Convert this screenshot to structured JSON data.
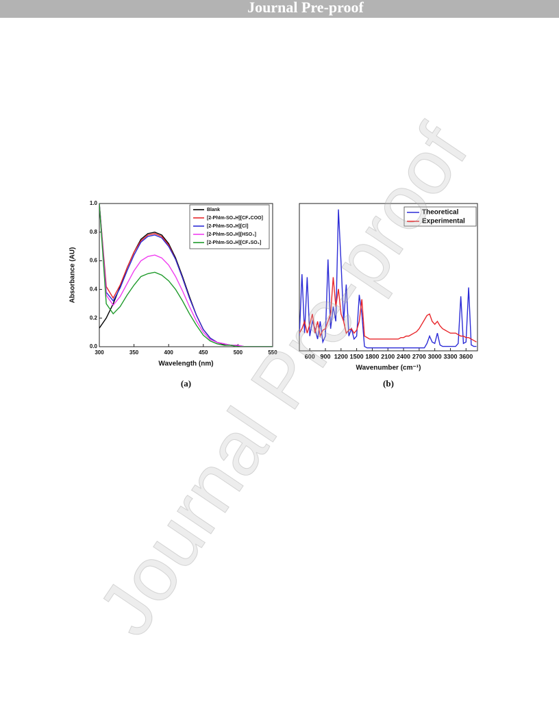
{
  "header": "Journal Pre-proof",
  "watermark": "Journal Pre-proof",
  "chart_data": [
    {
      "type": "line",
      "caption": "(a)",
      "x_label": "Wavelength (nm)",
      "y_label": "Absorbance (AU)",
      "xlim": [
        300,
        550
      ],
      "xticks": [
        300,
        350,
        400,
        450,
        500,
        550
      ],
      "ylim": [
        0,
        1
      ],
      "yticks": [
        {
          "value": 0,
          "label": "0.0"
        },
        0.2,
        0.4,
        0.6,
        0.8,
        {
          "value": 1,
          "label": "1.0"
        }
      ],
      "legend": "upper right",
      "x": [
        300,
        310,
        320,
        330,
        340,
        350,
        360,
        370,
        380,
        390,
        400,
        410,
        420,
        430,
        440,
        450,
        460,
        470,
        480,
        490,
        500,
        510,
        520,
        530,
        540,
        550
      ],
      "series": [
        {
          "name": "Blank",
          "color": "#000000",
          "values": [
            0.13,
            0.2,
            0.3,
            0.42,
            0.55,
            0.66,
            0.75,
            0.79,
            0.8,
            0.78,
            0.72,
            0.62,
            0.49,
            0.35,
            0.22,
            0.12,
            0.06,
            0.03,
            0.015,
            0.01,
            0.005,
            0,
            0,
            0,
            0,
            0
          ]
        },
        {
          "name": "[2-PhIm-SO₃H][CF₃COO]",
          "color": "#e8262a",
          "values": [
            1,
            0.42,
            0.34,
            0.43,
            0.55,
            0.66,
            0.74,
            0.78,
            0.79,
            0.77,
            0.71,
            0.61,
            0.48,
            0.34,
            0.22,
            0.12,
            0.06,
            0.03,
            0.02,
            0.01,
            0.01,
            0,
            0,
            0,
            0,
            0
          ]
        },
        {
          "name": "[2-PhIm-SO₃H][Cl]",
          "color": "#2b2bd6",
          "values": [
            1,
            0.38,
            0.32,
            0.41,
            0.53,
            0.64,
            0.73,
            0.77,
            0.78,
            0.76,
            0.7,
            0.61,
            0.48,
            0.34,
            0.22,
            0.12,
            0.06,
            0.03,
            0.02,
            0.01,
            0.01,
            0,
            0,
            0,
            0,
            0
          ]
        },
        {
          "name": "[2-PhIm-SO₃H][HSO₄]",
          "color": "#f03cf0",
          "values": [
            1,
            0.36,
            0.29,
            0.35,
            0.44,
            0.53,
            0.6,
            0.63,
            0.64,
            0.62,
            0.57,
            0.49,
            0.39,
            0.28,
            0.18,
            0.1,
            0.05,
            0.03,
            0.02,
            0.01,
            0.01,
            0,
            0,
            0,
            0,
            0
          ]
        },
        {
          "name": "[2-PhIm-SO₃H][CF₃SO₃]",
          "color": "#1e9a2a",
          "values": [
            1,
            0.3,
            0.23,
            0.28,
            0.36,
            0.43,
            0.49,
            0.51,
            0.52,
            0.5,
            0.46,
            0.4,
            0.32,
            0.23,
            0.15,
            0.08,
            0.04,
            0.02,
            0.01,
            0.01,
            0,
            0,
            0,
            0,
            0,
            0
          ]
        }
      ]
    },
    {
      "type": "line",
      "caption": "(b)",
      "x_label": "Wavenumber (cm⁻¹)",
      "xlim": [
        400,
        3820
      ],
      "xticks": [
        600,
        900,
        1200,
        1500,
        1800,
        2100,
        2400,
        2700,
        3000,
        3300,
        3600
      ],
      "ylim": [
        0,
        1
      ],
      "legend": "upper right",
      "x": [
        400,
        450,
        500,
        550,
        600,
        650,
        700,
        750,
        800,
        850,
        900,
        950,
        1000,
        1050,
        1100,
        1150,
        1200,
        1250,
        1300,
        1350,
        1400,
        1450,
        1500,
        1550,
        1600,
        1650,
        1700,
        1750,
        1800,
        1850,
        1900,
        1950,
        2000,
        2050,
        2100,
        2150,
        2200,
        2250,
        2300,
        2350,
        2400,
        2450,
        2500,
        2550,
        2600,
        2650,
        2700,
        2750,
        2800,
        2850,
        2900,
        2950,
        3000,
        3050,
        3100,
        3150,
        3200,
        3250,
        3300,
        3350,
        3400,
        3450,
        3500,
        3550,
        3600,
        3650,
        3700,
        3750,
        3800
      ],
      "series": [
        {
          "name": "Theoretical",
          "color": "#2b2bd6",
          "values": [
            0.1,
            0.52,
            0.12,
            0.5,
            0.1,
            0.2,
            0.15,
            0.08,
            0.2,
            0.06,
            0.1,
            0.62,
            0.15,
            0.3,
            0.2,
            0.96,
            0.6,
            0.2,
            0.45,
            0.1,
            0.15,
            0.08,
            0.1,
            0.38,
            0.25,
            0.03,
            0.02,
            0.02,
            0.02,
            0.02,
            0.02,
            0.02,
            0.02,
            0.02,
            0.02,
            0.02,
            0.02,
            0.02,
            0.02,
            0.02,
            0.02,
            0.02,
            0.02,
            0.02,
            0.02,
            0.02,
            0.02,
            0.02,
            0.02,
            0.05,
            0.1,
            0.06,
            0.05,
            0.12,
            0.04,
            0.03,
            0.03,
            0.03,
            0.03,
            0.03,
            0.03,
            0.05,
            0.37,
            0.05,
            0.06,
            0.43,
            0.04,
            0.03,
            0.03
          ]
        },
        {
          "name": "Experimental",
          "color": "#e8262a",
          "values": [
            0.12,
            0.15,
            0.2,
            0.12,
            0.18,
            0.25,
            0.12,
            0.2,
            0.1,
            0.14,
            0.15,
            0.2,
            0.25,
            0.5,
            0.3,
            0.42,
            0.25,
            0.2,
            0.12,
            0.14,
            0.15,
            0.12,
            0.14,
            0.2,
            0.35,
            0.1,
            0.09,
            0.08,
            0.08,
            0.08,
            0.08,
            0.08,
            0.08,
            0.08,
            0.08,
            0.08,
            0.08,
            0.08,
            0.08,
            0.09,
            0.09,
            0.1,
            0.1,
            0.11,
            0.12,
            0.13,
            0.15,
            0.18,
            0.21,
            0.24,
            0.25,
            0.2,
            0.18,
            0.2,
            0.17,
            0.15,
            0.14,
            0.13,
            0.12,
            0.12,
            0.12,
            0.11,
            0.1,
            0.1,
            0.09,
            0.09,
            0.08,
            0.07,
            0.06
          ]
        }
      ]
    }
  ]
}
